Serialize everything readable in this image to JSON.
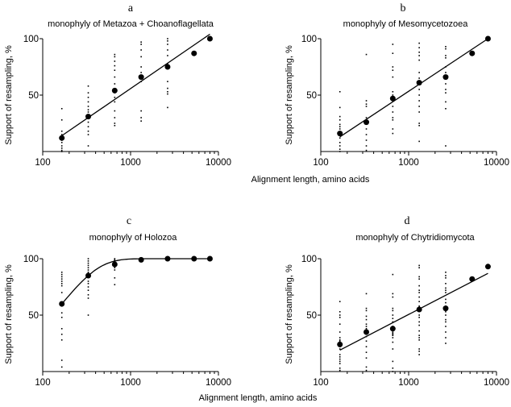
{
  "chart_data": [
    {
      "type": "scatter",
      "panel": "a",
      "title": "monophyly of Metazoa + Choanoflagellata",
      "xlabel": "Alignment length, amino acids",
      "ylabel": "Support of resampling, %",
      "xscale": "log",
      "xlim": [
        100,
        10000
      ],
      "ylim": [
        0,
        100
      ],
      "xticks": [
        "100",
        "1000",
        "10000"
      ],
      "yticks": [
        "50",
        "100"
      ],
      "means": {
        "x": [
          165,
          330,
          660,
          1320,
          2640,
          5280,
          8000
        ],
        "y": [
          12,
          31,
          54,
          66,
          75,
          87,
          100
        ]
      },
      "replicates": [
        {
          "x": 165,
          "y": [
            38,
            28,
            18,
            15,
            12,
            10,
            8,
            5,
            3,
            1,
            0
          ]
        },
        {
          "x": 330,
          "y": [
            58,
            52,
            48,
            44,
            40,
            37,
            35,
            30,
            26,
            22,
            18,
            15,
            5
          ]
        },
        {
          "x": 660,
          "y": [
            86,
            84,
            80,
            76,
            72,
            66,
            60,
            52,
            48,
            44,
            36,
            30,
            25,
            23
          ]
        },
        {
          "x": 1320,
          "y": [
            97,
            95,
            90,
            84,
            75,
            70,
            65,
            62,
            36,
            30,
            27
          ]
        },
        {
          "x": 2640,
          "y": [
            100,
            98,
            95,
            90,
            85,
            78,
            74,
            62,
            56,
            53,
            51,
            39
          ]
        }
      ],
      "fit": {
        "type": "log-linear",
        "from": [
          165,
          14
        ],
        "to": [
          8000,
          104
        ]
      }
    },
    {
      "type": "scatter",
      "panel": "b",
      "title": "monophyly of Mesomycetozoea",
      "ylabel": "Support of resampling, %",
      "xscale": "log",
      "xlim": [
        100,
        10000
      ],
      "ylim": [
        0,
        100
      ],
      "xticks": [
        "100",
        "1000",
        "10000"
      ],
      "yticks": [
        "50",
        "100"
      ],
      "means": {
        "x": [
          165,
          330,
          660,
          1320,
          2640,
          5280,
          8000
        ],
        "y": [
          16,
          26,
          47,
          61,
          66,
          87,
          100
        ]
      },
      "replicates": [
        {
          "x": 165,
          "y": [
            53,
            39,
            31,
            28,
            24,
            22,
            20,
            16,
            12,
            8,
            5,
            2,
            0
          ]
        },
        {
          "x": 330,
          "y": [
            86,
            45,
            42,
            40,
            30,
            25,
            20,
            15,
            10,
            5,
            1
          ]
        },
        {
          "x": 660,
          "y": [
            95,
            87,
            75,
            72,
            66,
            53,
            50,
            45,
            40,
            35,
            30,
            28,
            20,
            16
          ]
        },
        {
          "x": 1320,
          "y": [
            96,
            92,
            88,
            85,
            81,
            70,
            65,
            60,
            55,
            50,
            45,
            40,
            35,
            25,
            23,
            9
          ]
        },
        {
          "x": 2640,
          "y": [
            93,
            91,
            85,
            83,
            75,
            70,
            65,
            60,
            55,
            52,
            44,
            38,
            5
          ]
        }
      ],
      "fit": {
        "type": "log-linear",
        "from": [
          165,
          13
        ],
        "to": [
          8000,
          100
        ]
      }
    },
    {
      "type": "scatter",
      "panel": "c",
      "title": "monophyly of Holozoa",
      "xlabel": "Alignment length, amino acids",
      "ylabel": "Support of resampling, %",
      "xscale": "log",
      "xlim": [
        100,
        10000
      ],
      "ylim": [
        0,
        100
      ],
      "xticks": [
        "100",
        "1000",
        "10000"
      ],
      "yticks": [
        "50",
        "100"
      ],
      "means": {
        "x": [
          165,
          330,
          660,
          1320,
          2640,
          5280,
          8000
        ],
        "y": [
          60,
          85,
          95,
          99,
          100,
          100,
          100
        ]
      },
      "replicates": [
        {
          "x": 165,
          "y": [
            88,
            86,
            84,
            82,
            80,
            78,
            76,
            70,
            60,
            58,
            52,
            48,
            38,
            33,
            28,
            10,
            4
          ]
        },
        {
          "x": 330,
          "y": [
            100,
            98,
            96,
            94,
            92,
            90,
            88,
            85,
            80,
            78,
            75,
            72,
            68,
            65,
            50
          ]
        },
        {
          "x": 660,
          "y": [
            100,
            99,
            98,
            97,
            96,
            95,
            92,
            90,
            83,
            77
          ]
        }
      ],
      "fit": {
        "type": "exponential-plateau",
        "plateau": 100,
        "x0": 165,
        "y0": 60,
        "scale": 168,
        "to_x": 8000
      }
    },
    {
      "type": "scatter",
      "panel": "d",
      "title": "monophyly of Chytridiomycota",
      "ylabel": "Support of resampling, %",
      "xscale": "log",
      "xlim": [
        100,
        10000
      ],
      "ylim": [
        0,
        100
      ],
      "xticks": [
        "100",
        "1000",
        "10000"
      ],
      "yticks": [
        "50",
        "100"
      ],
      "means": {
        "x": [
          165,
          330,
          660,
          1320,
          2640,
          5280,
          8000
        ],
        "y": [
          24,
          35,
          38,
          55,
          56,
          82,
          93
        ]
      },
      "replicates": [
        {
          "x": 165,
          "y": [
            62,
            53,
            50,
            48,
            42,
            35,
            30,
            28,
            27,
            26,
            25,
            24,
            22,
            20,
            15,
            13,
            11,
            9,
            7,
            3,
            1
          ]
        },
        {
          "x": 330,
          "y": [
            69,
            56,
            54,
            49,
            46,
            42,
            40,
            38,
            36,
            35,
            34,
            33,
            31,
            27,
            22,
            17,
            12,
            4,
            1
          ]
        },
        {
          "x": 660,
          "y": [
            86,
            69,
            66,
            56,
            54,
            50,
            47,
            44,
            40,
            38,
            35,
            34,
            33,
            32,
            30,
            26,
            20,
            9,
            3,
            0
          ]
        },
        {
          "x": 1320,
          "y": [
            94,
            92,
            84,
            82,
            76,
            72,
            70,
            66,
            62,
            58,
            55,
            50,
            48,
            44,
            41,
            36,
            32,
            30,
            28,
            20,
            18,
            15
          ]
        },
        {
          "x": 2640,
          "y": [
            88,
            85,
            83,
            78,
            74,
            72,
            70,
            64,
            61,
            58,
            55,
            53,
            50,
            46,
            44,
            40,
            35,
            30,
            25
          ]
        }
      ],
      "fit": {
        "type": "log-linear",
        "from": [
          165,
          19
        ],
        "to": [
          8000,
          87
        ]
      }
    }
  ]
}
